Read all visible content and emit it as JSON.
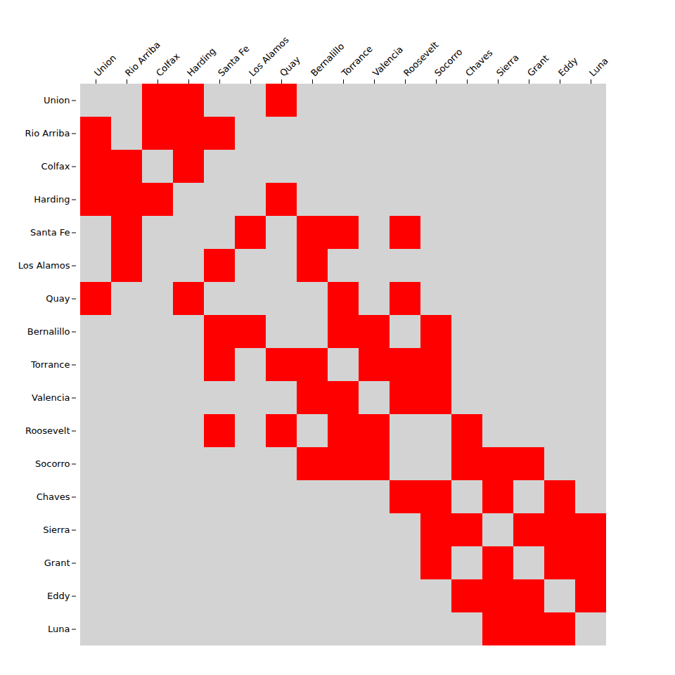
{
  "chart_data": {
    "type": "heatmap",
    "categories": [
      "Union",
      "Rio Arriba",
      "Colfax",
      "Harding",
      "Santa Fe",
      "Los Alamos",
      "Quay",
      "Bernalillo",
      "Torrance",
      "Valencia",
      "Roosevelt",
      "Socorro",
      "Chaves",
      "Sierra",
      "Grant",
      "Eddy",
      "Luna"
    ],
    "matrix": [
      [
        0,
        0,
        1,
        1,
        0,
        0,
        1,
        0,
        0,
        0,
        0,
        0,
        0,
        0,
        0,
        0,
        0
      ],
      [
        1,
        0,
        1,
        1,
        1,
        0,
        0,
        0,
        0,
        0,
        0,
        0,
        0,
        0,
        0,
        0,
        0
      ],
      [
        1,
        1,
        0,
        1,
        0,
        0,
        0,
        0,
        0,
        0,
        0,
        0,
        0,
        0,
        0,
        0,
        0
      ],
      [
        1,
        1,
        1,
        0,
        0,
        0,
        1,
        0,
        0,
        0,
        0,
        0,
        0,
        0,
        0,
        0,
        0
      ],
      [
        0,
        1,
        0,
        0,
        0,
        1,
        0,
        1,
        1,
        0,
        1,
        0,
        0,
        0,
        0,
        0,
        0
      ],
      [
        0,
        1,
        0,
        0,
        1,
        0,
        0,
        1,
        0,
        0,
        0,
        0,
        0,
        0,
        0,
        0,
        0
      ],
      [
        1,
        0,
        0,
        1,
        0,
        0,
        0,
        0,
        1,
        0,
        1,
        0,
        0,
        0,
        0,
        0,
        0
      ],
      [
        0,
        0,
        0,
        0,
        1,
        1,
        0,
        0,
        1,
        1,
        0,
        1,
        0,
        0,
        0,
        0,
        0
      ],
      [
        0,
        0,
        0,
        0,
        1,
        0,
        1,
        1,
        0,
        1,
        1,
        1,
        0,
        0,
        0,
        0,
        0
      ],
      [
        0,
        0,
        0,
        0,
        0,
        0,
        0,
        1,
        1,
        0,
        1,
        1,
        0,
        0,
        0,
        0,
        0
      ],
      [
        0,
        0,
        0,
        0,
        1,
        0,
        1,
        0,
        1,
        1,
        0,
        0,
        1,
        0,
        0,
        0,
        0
      ],
      [
        0,
        0,
        0,
        0,
        0,
        0,
        0,
        1,
        1,
        1,
        0,
        0,
        1,
        1,
        1,
        0,
        0
      ],
      [
        0,
        0,
        0,
        0,
        0,
        0,
        0,
        0,
        0,
        0,
        1,
        1,
        0,
        1,
        0,
        1,
        0
      ],
      [
        0,
        0,
        0,
        0,
        0,
        0,
        0,
        0,
        0,
        0,
        0,
        1,
        1,
        0,
        1,
        1,
        1
      ],
      [
        0,
        0,
        0,
        0,
        0,
        0,
        0,
        0,
        0,
        0,
        0,
        1,
        0,
        1,
        0,
        1,
        1
      ],
      [
        0,
        0,
        0,
        0,
        0,
        0,
        0,
        0,
        0,
        0,
        0,
        0,
        1,
        1,
        1,
        0,
        1
      ],
      [
        0,
        0,
        0,
        0,
        0,
        0,
        0,
        0,
        0,
        0,
        0,
        0,
        0,
        1,
        1,
        1,
        0
      ]
    ],
    "colors": [
      "#d3d3d3",
      "#ff0000"
    ],
    "grid": false
  }
}
